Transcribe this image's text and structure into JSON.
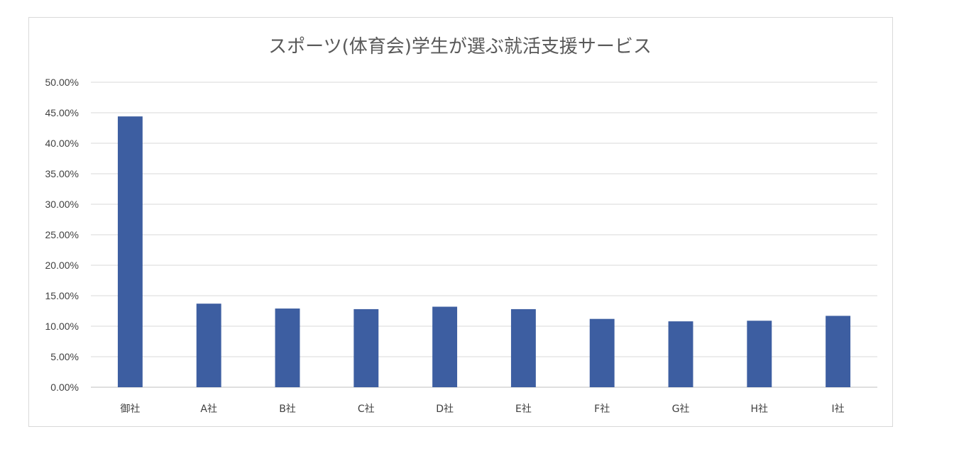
{
  "chart_data": {
    "type": "bar",
    "title": "スポーツ(体育会)学生が選ぶ就活支援サービス",
    "xlabel": "",
    "ylabel": "",
    "categories": [
      "御社",
      "A社",
      "B社",
      "C社",
      "D社",
      "E社",
      "F社",
      "G社",
      "H社",
      "I社"
    ],
    "series": [
      {
        "values": [
          0.444,
          0.137,
          0.129,
          0.128,
          0.132,
          0.128,
          0.112,
          0.108,
          0.109,
          0.117
        ]
      }
    ],
    "ylim": [
      0,
      0.5
    ],
    "yticks": [
      0,
      0.05,
      0.1,
      0.15,
      0.2,
      0.25,
      0.3,
      0.35,
      0.4,
      0.45,
      0.5
    ],
    "ytick_labels": [
      "0.00%",
      "5.00%",
      "10.00%",
      "15.00%",
      "20.00%",
      "25.00%",
      "30.00%",
      "35.00%",
      "40.00%",
      "45.00%",
      "50.00%"
    ],
    "grid": true,
    "legend": "none",
    "bar_color": "#3d5ea1"
  }
}
